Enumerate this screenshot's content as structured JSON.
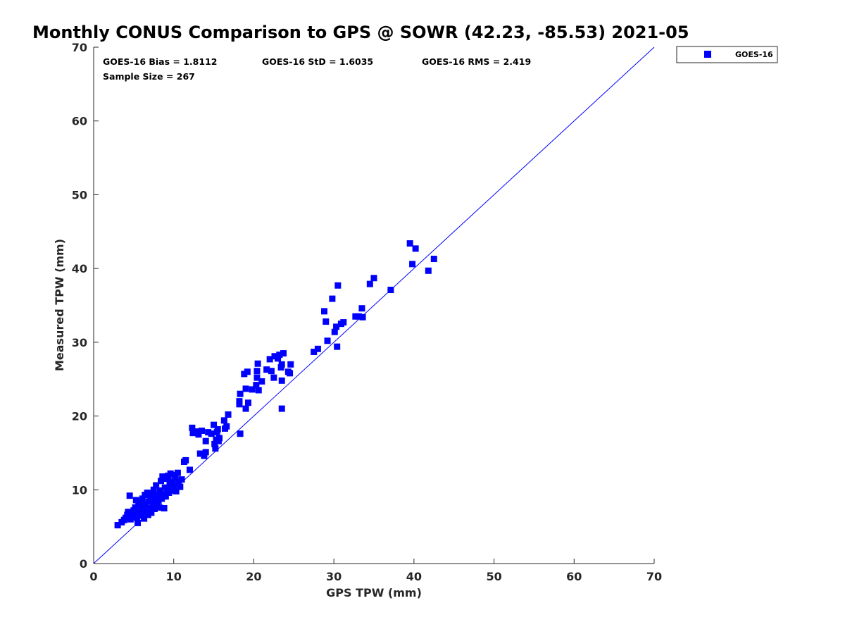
{
  "chart_data": {
    "type": "scatter",
    "title": "Monthly CONUS Comparison to GPS @ SOWR (42.23, -85.53) 2021-05",
    "xlabel": "GPS TPW (mm)",
    "ylabel": "Measured TPW (mm)",
    "xlim": [
      0,
      70
    ],
    "ylim": [
      0,
      70
    ],
    "xticks": [
      "0",
      "10",
      "20",
      "30",
      "40",
      "50",
      "60",
      "70"
    ],
    "yticks": [
      "0",
      "10",
      "20",
      "30",
      "40",
      "50",
      "60",
      "70"
    ],
    "grid": false,
    "legend_position": "top-right outside plot",
    "reference_line": {
      "type": "one-to-one",
      "from": [
        0,
        0
      ],
      "to": [
        70,
        70
      ],
      "color": "#0000ff"
    },
    "stats": {
      "bias": "GOES-16 Bias = 1.8112",
      "std": "GOES-16 StD = 1.6035",
      "rms": "GOES-16 RMS = 2.419",
      "sample_size": "Sample Size = 267"
    },
    "series": [
      {
        "name": "GOES-16",
        "color": "#0000ff",
        "marker": "square",
        "points": [
          [
            3.0,
            5.2
          ],
          [
            3.5,
            5.6
          ],
          [
            3.8,
            5.9
          ],
          [
            4.0,
            6.2
          ],
          [
            4.2,
            6.6
          ],
          [
            4.3,
            7.0
          ],
          [
            4.5,
            9.2
          ],
          [
            4.6,
            6.0
          ],
          [
            4.8,
            6.4
          ],
          [
            5.0,
            7.2
          ],
          [
            5.0,
            6.8
          ],
          [
            5.2,
            7.6
          ],
          [
            5.3,
            8.6
          ],
          [
            5.4,
            6.2
          ],
          [
            5.5,
            5.5
          ],
          [
            5.6,
            7.9
          ],
          [
            5.7,
            6.9
          ],
          [
            5.8,
            8.2
          ],
          [
            6.0,
            6.5
          ],
          [
            6.0,
            7.3
          ],
          [
            6.1,
            8.8
          ],
          [
            6.2,
            7.7
          ],
          [
            6.3,
            6.1
          ],
          [
            6.4,
            9.3
          ],
          [
            6.5,
            8.0
          ],
          [
            6.6,
            7.0
          ],
          [
            6.7,
            9.6
          ],
          [
            6.8,
            6.6
          ],
          [
            6.9,
            8.4
          ],
          [
            7.0,
            7.5
          ],
          [
            7.1,
            9.0
          ],
          [
            7.2,
            6.9
          ],
          [
            7.3,
            9.5
          ],
          [
            7.4,
            8.1
          ],
          [
            7.5,
            10.0
          ],
          [
            7.6,
            7.4
          ],
          [
            7.7,
            8.9
          ],
          [
            7.8,
            10.6
          ],
          [
            7.9,
            7.9
          ],
          [
            8.0,
            9.3
          ],
          [
            8.1,
            8.5
          ],
          [
            8.2,
            7.6
          ],
          [
            8.3,
            9.9
          ],
          [
            8.4,
            11.2
          ],
          [
            8.5,
            8.8
          ],
          [
            8.6,
            11.8
          ],
          [
            8.7,
            9.4
          ],
          [
            8.8,
            7.5
          ],
          [
            8.9,
            10.3
          ],
          [
            9.0,
            9.1
          ],
          [
            9.1,
            11.5
          ],
          [
            9.2,
            10.0
          ],
          [
            9.3,
            11.9
          ],
          [
            9.4,
            9.6
          ],
          [
            9.5,
            10.8
          ],
          [
            9.6,
            12.2
          ],
          [
            9.7,
            9.9
          ],
          [
            9.8,
            11.1
          ],
          [
            10.0,
            10.5
          ],
          [
            10.1,
            12.0
          ],
          [
            10.2,
            11.6
          ],
          [
            10.3,
            9.8
          ],
          [
            10.5,
            12.3
          ],
          [
            10.6,
            11.0
          ],
          [
            10.8,
            10.4
          ],
          [
            11.0,
            11.4
          ],
          [
            11.3,
            13.8
          ],
          [
            11.5,
            14.0
          ],
          [
            12.0,
            12.7
          ],
          [
            12.3,
            18.4
          ],
          [
            12.4,
            17.7
          ],
          [
            12.8,
            17.9
          ],
          [
            13.1,
            17.5
          ],
          [
            13.3,
            14.9
          ],
          [
            13.5,
            18.0
          ],
          [
            13.8,
            14.6
          ],
          [
            14.0,
            15.1
          ],
          [
            14.0,
            16.6
          ],
          [
            14.3,
            17.8
          ],
          [
            14.7,
            17.6
          ],
          [
            15.0,
            18.8
          ],
          [
            15.1,
            16.2
          ],
          [
            15.2,
            15.6
          ],
          [
            15.3,
            16.8
          ],
          [
            15.4,
            17.8
          ],
          [
            15.5,
            18.2
          ],
          [
            15.6,
            16.6
          ],
          [
            15.7,
            17.0
          ],
          [
            16.3,
            19.4
          ],
          [
            16.4,
            18.3
          ],
          [
            16.6,
            18.6
          ],
          [
            16.8,
            20.2
          ],
          [
            18.2,
            22.0
          ],
          [
            18.2,
            21.6
          ],
          [
            18.3,
            17.6
          ],
          [
            18.3,
            23.0
          ],
          [
            18.8,
            25.7
          ],
          [
            19.0,
            23.7
          ],
          [
            19.0,
            21.0
          ],
          [
            19.2,
            26.0
          ],
          [
            19.3,
            21.8
          ],
          [
            19.8,
            23.6
          ],
          [
            20.3,
            24.2
          ],
          [
            20.4,
            26.1
          ],
          [
            20.4,
            25.2
          ],
          [
            20.5,
            27.1
          ],
          [
            20.6,
            23.5
          ],
          [
            21.0,
            24.7
          ],
          [
            21.6,
            26.3
          ],
          [
            22.0,
            27.7
          ],
          [
            22.2,
            26.1
          ],
          [
            22.5,
            25.2
          ],
          [
            22.6,
            28.1
          ],
          [
            23.0,
            27.8
          ],
          [
            23.2,
            28.3
          ],
          [
            23.4,
            26.6
          ],
          [
            23.5,
            27.0
          ],
          [
            23.5,
            24.8
          ],
          [
            23.5,
            21.0
          ],
          [
            23.7,
            28.5
          ],
          [
            24.3,
            26.0
          ],
          [
            24.5,
            25.8
          ],
          [
            24.6,
            27.0
          ],
          [
            27.5,
            28.7
          ],
          [
            28.0,
            29.1
          ],
          [
            28.8,
            34.2
          ],
          [
            29.0,
            32.8
          ],
          [
            29.2,
            30.2
          ],
          [
            29.8,
            35.9
          ],
          [
            30.1,
            31.4
          ],
          [
            30.3,
            32.1
          ],
          [
            30.4,
            29.4
          ],
          [
            30.5,
            37.7
          ],
          [
            30.9,
            32.5
          ],
          [
            31.2,
            32.7
          ],
          [
            32.7,
            33.5
          ],
          [
            33.1,
            33.5
          ],
          [
            33.5,
            34.6
          ],
          [
            33.6,
            33.4
          ],
          [
            34.5,
            37.9
          ],
          [
            35.0,
            38.7
          ],
          [
            37.1,
            37.1
          ],
          [
            39.5,
            43.4
          ],
          [
            39.8,
            40.6
          ],
          [
            40.2,
            42.7
          ],
          [
            41.8,
            39.7
          ],
          [
            42.5,
            41.3
          ]
        ]
      }
    ]
  }
}
